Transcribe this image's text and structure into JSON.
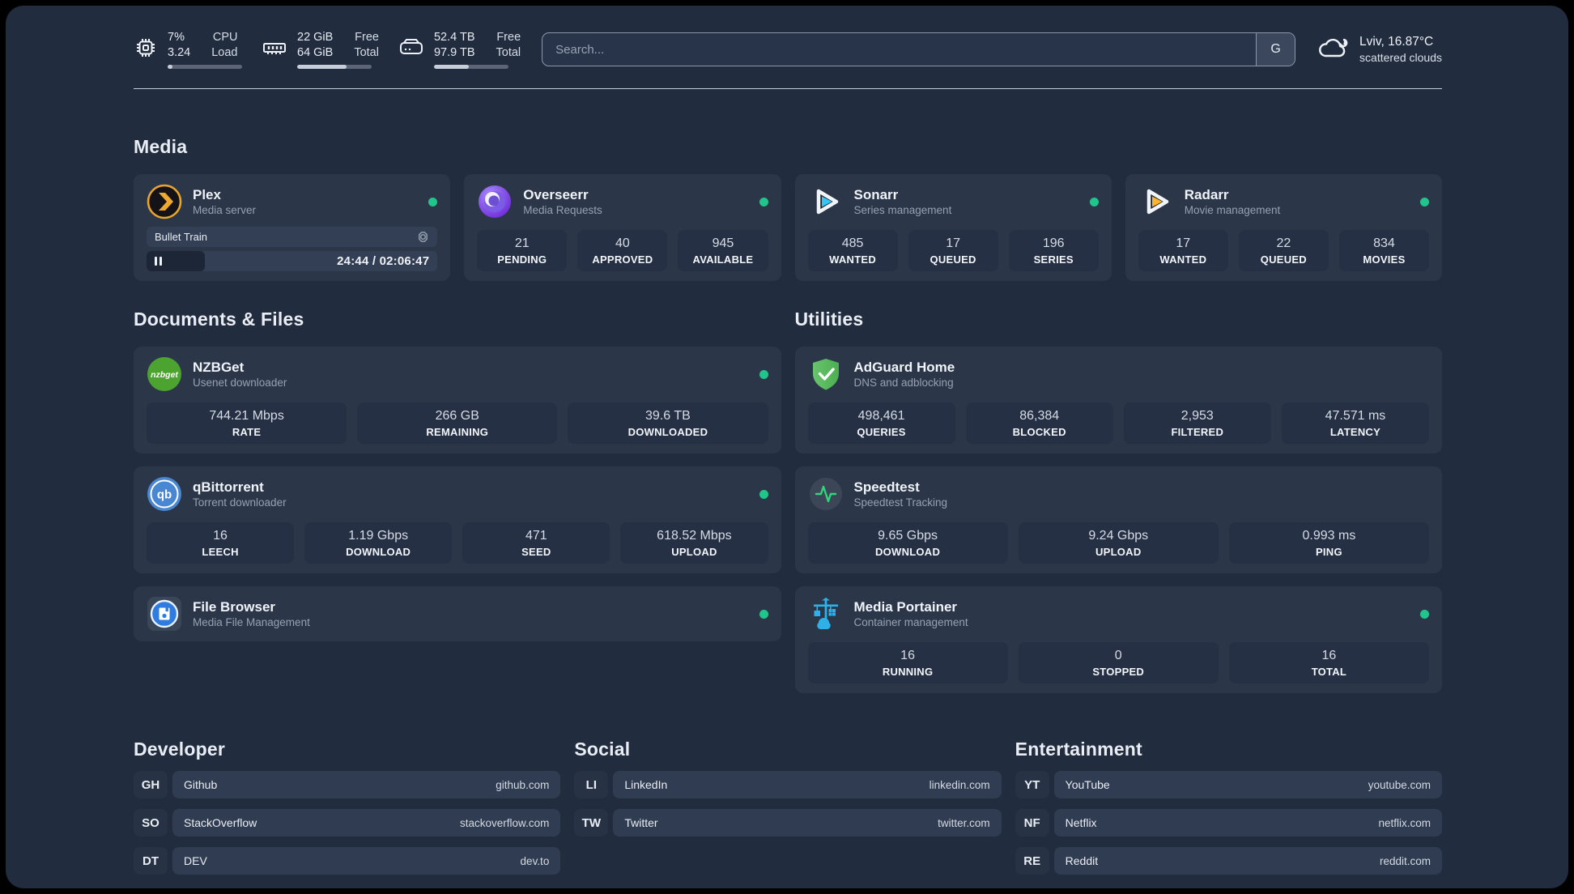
{
  "header": {
    "stats": [
      {
        "icon": "cpu-icon",
        "line1": "7%",
        "line2": "3.24",
        "label1": "CPU",
        "label2": "Load",
        "progress": 7
      },
      {
        "icon": "ram-icon",
        "line1": "22 GiB",
        "line2": "64 GiB",
        "label1": "Free",
        "label2": "Total",
        "progress": 66
      },
      {
        "icon": "disk-icon",
        "line1": "52.4 TB",
        "line2": "97.9 TB",
        "label1": "Free",
        "label2": "Total",
        "progress": 47
      }
    ],
    "search": {
      "placeholder": "Search...",
      "button_label": "G"
    },
    "weather": {
      "location": "Lviv, 16.87°C",
      "condition": "scattered clouds"
    }
  },
  "sections": {
    "media": {
      "title": "Media",
      "plex": {
        "name": "Plex",
        "desc": "Media server",
        "now_playing": {
          "title": "Bullet Train",
          "time_display": "24:44 / 02:06:47",
          "progress_pct": 20,
          "state": "paused"
        }
      },
      "overseerr": {
        "name": "Overseerr",
        "desc": "Media Requests",
        "stats": [
          {
            "value": "21",
            "label": "PENDING"
          },
          {
            "value": "40",
            "label": "APPROVED"
          },
          {
            "value": "945",
            "label": "AVAILABLE"
          }
        ]
      },
      "sonarr": {
        "name": "Sonarr",
        "desc": "Series management",
        "stats": [
          {
            "value": "485",
            "label": "WANTED"
          },
          {
            "value": "17",
            "label": "QUEUED"
          },
          {
            "value": "196",
            "label": "SERIES"
          }
        ]
      },
      "radarr": {
        "name": "Radarr",
        "desc": "Movie management",
        "stats": [
          {
            "value": "17",
            "label": "WANTED"
          },
          {
            "value": "22",
            "label": "QUEUED"
          },
          {
            "value": "834",
            "label": "MOVIES"
          }
        ]
      }
    },
    "documents": {
      "title": "Documents & Files",
      "nzbget": {
        "name": "NZBGet",
        "desc": "Usenet downloader",
        "stats": [
          {
            "value": "744.21 Mbps",
            "label": "RATE"
          },
          {
            "value": "266 GB",
            "label": "REMAINING"
          },
          {
            "value": "39.6 TB",
            "label": "DOWNLOADED"
          }
        ]
      },
      "qbittorrent": {
        "name": "qBittorrent",
        "desc": "Torrent downloader",
        "stats": [
          {
            "value": "16",
            "label": "LEECH"
          },
          {
            "value": "1.19 Gbps",
            "label": "DOWNLOAD"
          },
          {
            "value": "471",
            "label": "SEED"
          },
          {
            "value": "618.52 Mbps",
            "label": "UPLOAD"
          }
        ]
      },
      "filebrowser": {
        "name": "File Browser",
        "desc": "Media File Management"
      }
    },
    "utilities": {
      "title": "Utilities",
      "adguard": {
        "name": "AdGuard Home",
        "desc": "DNS and adblocking",
        "stats": [
          {
            "value": "498,461",
            "label": "QUERIES"
          },
          {
            "value": "86,384",
            "label": "BLOCKED"
          },
          {
            "value": "2,953",
            "label": "FILTERED"
          },
          {
            "value": "47.571 ms",
            "label": "LATENCY"
          }
        ]
      },
      "speedtest": {
        "name": "Speedtest",
        "desc": "Speedtest Tracking",
        "stats": [
          {
            "value": "9.65 Gbps",
            "label": "DOWNLOAD"
          },
          {
            "value": "9.24 Gbps",
            "label": "UPLOAD"
          },
          {
            "value": "0.993 ms",
            "label": "PING"
          }
        ]
      },
      "portainer": {
        "name": "Media Portainer",
        "desc": "Container management",
        "stats": [
          {
            "value": "16",
            "label": "RUNNING"
          },
          {
            "value": "0",
            "label": "STOPPED"
          },
          {
            "value": "16",
            "label": "TOTAL"
          }
        ]
      }
    },
    "links": {
      "developer": {
        "title": "Developer",
        "items": [
          {
            "abbr": "GH",
            "name": "Github",
            "url": "github.com"
          },
          {
            "abbr": "SO",
            "name": "StackOverflow",
            "url": "stackoverflow.com"
          },
          {
            "abbr": "DT",
            "name": "DEV",
            "url": "dev.to"
          }
        ]
      },
      "social": {
        "title": "Social",
        "items": [
          {
            "abbr": "LI",
            "name": "LinkedIn",
            "url": "linkedin.com"
          },
          {
            "abbr": "TW",
            "name": "Twitter",
            "url": "twitter.com"
          }
        ]
      },
      "entertainment": {
        "title": "Entertainment",
        "items": [
          {
            "abbr": "YT",
            "name": "YouTube",
            "url": "youtube.com"
          },
          {
            "abbr": "NF",
            "name": "Netflix",
            "url": "netflix.com"
          },
          {
            "abbr": "RE",
            "name": "Reddit",
            "url": "reddit.com"
          }
        ]
      }
    }
  },
  "colors": {
    "page_bg": "#212c3e",
    "card_bg": "#2b3749",
    "accent_green": "#21c58b"
  }
}
